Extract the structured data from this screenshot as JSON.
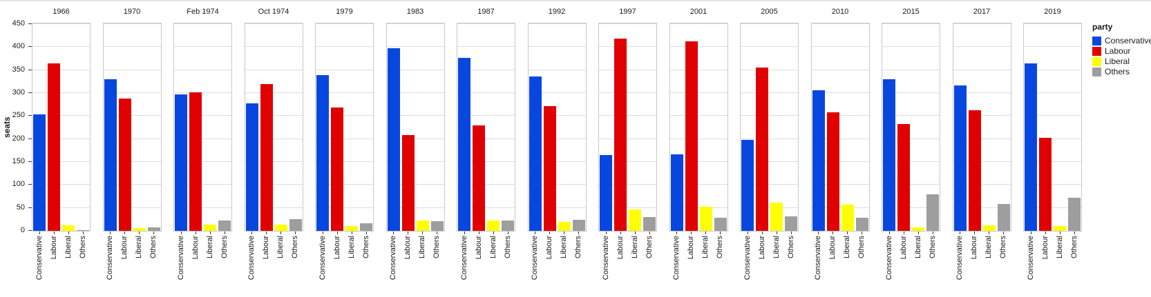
{
  "figure": {
    "background": "#ffffff",
    "top_border_color": "#e3e3e3",
    "panel_border_color": "#c8c8c8",
    "gridline_color": "#dcdcdc",
    "tick_color": "#333333",
    "text_color": "#1a1a1a"
  },
  "legend": {
    "title": "party",
    "items": [
      {
        "label": "Conservative",
        "color": "#0847df"
      },
      {
        "label": "Labour",
        "color": "#e10000"
      },
      {
        "label": "Liberal",
        "color": "#ffff00"
      },
      {
        "label": "Others",
        "color": "#9e9e9e"
      }
    ]
  },
  "chart_data": {
    "type": "bar",
    "title": "",
    "ylabel": "seats",
    "xlabel": "",
    "ylim": [
      0,
      450
    ],
    "yticks": [
      0,
      50,
      100,
      150,
      200,
      250,
      300,
      350,
      400,
      450
    ],
    "grid": "horizontal",
    "legend_title": "party",
    "legend_position": "top-right",
    "categories": [
      "Conservative",
      "Labour",
      "Liberal",
      "Others"
    ],
    "series_colors": [
      "#0847df",
      "#e10000",
      "#ffff00",
      "#9e9e9e"
    ],
    "facets": [
      {
        "label": "1966",
        "values": [
          253,
          364,
          12,
          2
        ]
      },
      {
        "label": "1970",
        "values": [
          330,
          288,
          6,
          7
        ]
      },
      {
        "label": "Feb 1974",
        "values": [
          297,
          301,
          14,
          23
        ]
      },
      {
        "label": "Oct 1974",
        "values": [
          277,
          319,
          13,
          26
        ]
      },
      {
        "label": "1979",
        "values": [
          339,
          269,
          11,
          16
        ]
      },
      {
        "label": "1983",
        "values": [
          397,
          209,
          23,
          21
        ]
      },
      {
        "label": "1987",
        "values": [
          376,
          229,
          22,
          23
        ]
      },
      {
        "label": "1992",
        "values": [
          336,
          271,
          20,
          24
        ]
      },
      {
        "label": "1997",
        "values": [
          165,
          418,
          46,
          30
        ]
      },
      {
        "label": "2001",
        "values": [
          166,
          413,
          52,
          28
        ]
      },
      {
        "label": "2005",
        "values": [
          198,
          355,
          62,
          31
        ]
      },
      {
        "label": "2010",
        "values": [
          306,
          258,
          57,
          29
        ]
      },
      {
        "label": "2015",
        "values": [
          330,
          232,
          8,
          80
        ]
      },
      {
        "label": "2017",
        "values": [
          317,
          262,
          12,
          59
        ]
      },
      {
        "label": "2019",
        "values": [
          365,
          202,
          11,
          72
        ]
      }
    ]
  }
}
